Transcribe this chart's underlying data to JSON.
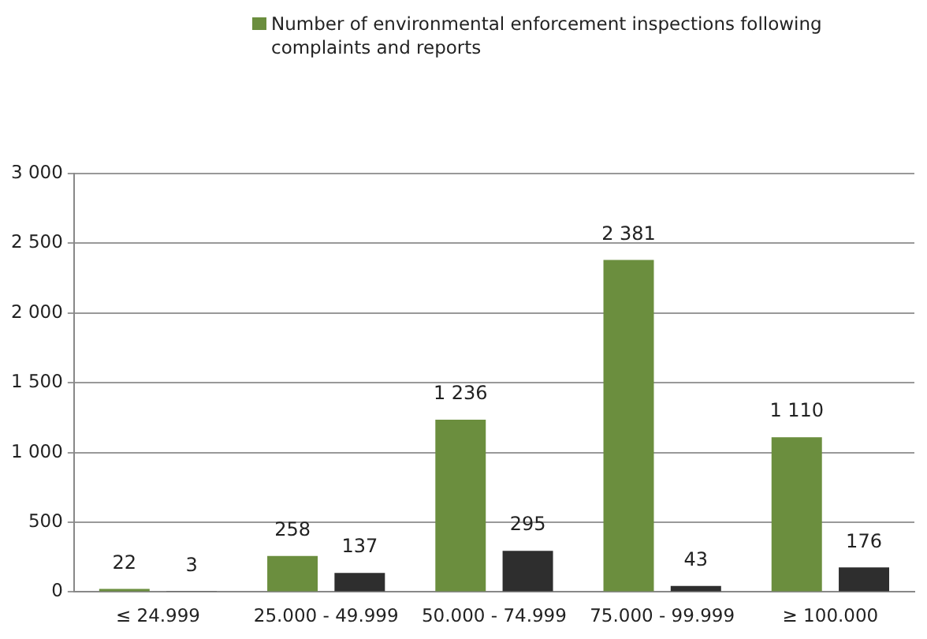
{
  "chart_data": {
    "type": "bar",
    "categories": [
      "≤ 24.999",
      "25.000 - 49.999",
      "50.000 - 74.999",
      "75.000 - 99.999",
      "≥ 100.000"
    ],
    "series": [
      {
        "name": "Number of environmental enforcement inspections following complaints and reports",
        "color": "#6b8e3e",
        "values": [
          22,
          258,
          1236,
          2381,
          1110
        ],
        "value_labels": [
          "22",
          "258",
          "1 236",
          "2 381",
          "1 110"
        ]
      },
      {
        "color": "#2e2e2e",
        "values": [
          3,
          137,
          295,
          43,
          176
        ],
        "value_labels": [
          "3",
          "137",
          "295",
          "43",
          "176"
        ]
      }
    ],
    "ylim": [
      0,
      3000
    ],
    "yticks": [
      0,
      {
        "value": 500,
        "label": "500"
      },
      {
        "value": 1000,
        "label": "1 000"
      },
      {
        "value": 1500,
        "label": "1 500"
      },
      {
        "value": 2000,
        "label": "2 000"
      },
      {
        "value": 2500,
        "label": "2 500"
      },
      {
        "value": 3000,
        "label": "3 000"
      }
    ],
    "grid": "y",
    "legend": "top right"
  }
}
